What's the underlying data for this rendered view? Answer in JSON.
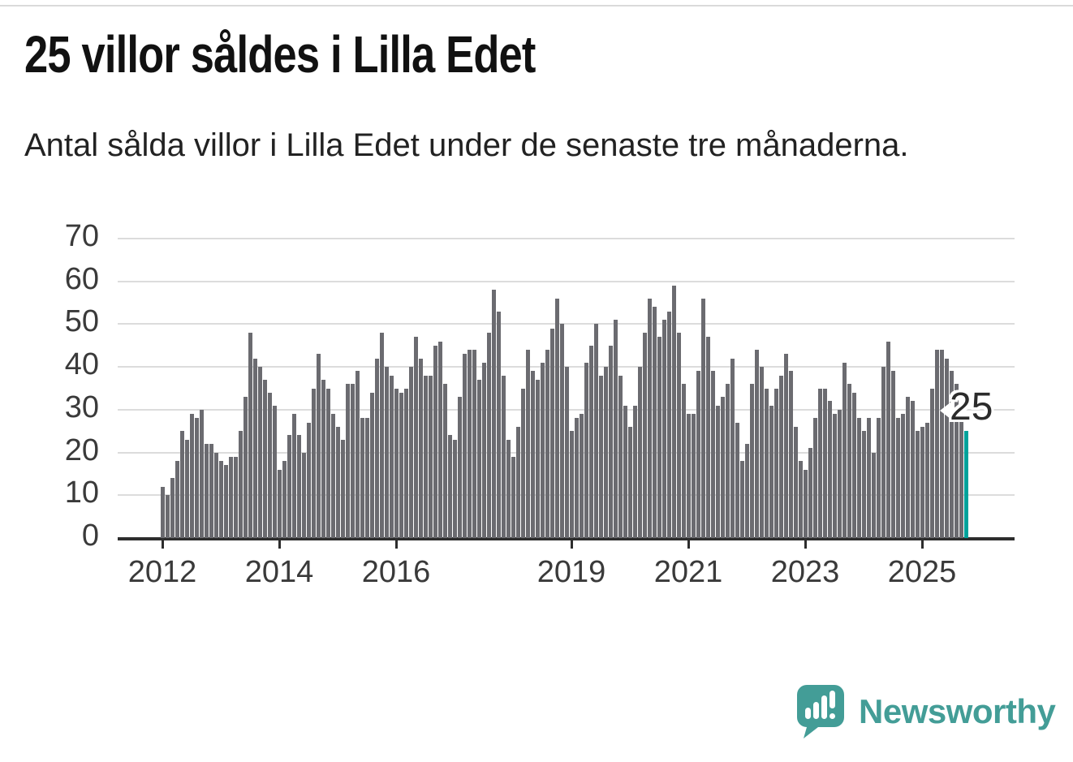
{
  "title": "25 villor såldes i Lilla Edet",
  "subtitle": "Antal sålda villor i Lilla Edet under de senaste tre månaderna.",
  "annotation": {
    "label": "25"
  },
  "branding": {
    "name": "Newsworthy",
    "logo": "newsworthy-speech-bubble-bar-chart-logo"
  },
  "colors": {
    "bar": "#6b6b70",
    "highlight": "#00a29a",
    "axis": "#2d2d2d",
    "grid": "#dcdcdc",
    "title_text": "#111111",
    "tick_text": "#3a3a3a",
    "brand_teal": "#439d97"
  },
  "chart_data": {
    "type": "bar",
    "title": "25 villor såldes i Lilla Edet",
    "subtitle": "Antal sålda villor i Lilla Edet under de senaste tre månaderna.",
    "xlabel": "",
    "ylabel": "",
    "ylim": [
      0,
      70
    ],
    "grid": true,
    "period": "monthly, rolling 3-month totals",
    "start_month": "2012-01",
    "end_month": "2025-10",
    "y_ticks": [
      0,
      10,
      20,
      30,
      40,
      50,
      60,
      70
    ],
    "x_tick_labels": [
      "2012",
      "2014",
      "2016",
      "2019",
      "2021",
      "2023",
      "2025"
    ],
    "x_tick_month_index": [
      0,
      24,
      48,
      84,
      108,
      132,
      156
    ],
    "highlight_last_value": 25,
    "values": [
      12,
      10,
      14,
      18,
      25,
      23,
      29,
      28,
      30,
      22,
      22,
      20,
      18,
      17,
      19,
      19,
      25,
      33,
      48,
      42,
      40,
      37,
      34,
      31,
      16,
      18,
      24,
      29,
      24,
      20,
      27,
      35,
      43,
      37,
      35,
      29,
      26,
      23,
      36,
      36,
      39,
      28,
      28,
      34,
      42,
      48,
      40,
      38,
      35,
      34,
      35,
      40,
      47,
      42,
      38,
      38,
      45,
      46,
      36,
      24,
      23,
      33,
      43,
      44,
      44,
      37,
      41,
      48,
      58,
      53,
      38,
      23,
      19,
      26,
      35,
      44,
      39,
      37,
      41,
      44,
      49,
      56,
      50,
      40,
      25,
      28,
      29,
      41,
      45,
      50,
      38,
      40,
      45,
      51,
      38,
      31,
      26,
      31,
      40,
      48,
      56,
      54,
      47,
      51,
      53,
      59,
      48,
      36,
      29,
      29,
      39,
      56,
      47,
      39,
      31,
      33,
      36,
      42,
      27,
      18,
      22,
      36,
      44,
      40,
      35,
      31,
      35,
      38,
      43,
      39,
      26,
      18,
      16,
      21,
      28,
      35,
      35,
      32,
      29,
      30,
      41,
      36,
      34,
      28,
      25,
      28,
      20,
      28,
      40,
      46,
      39,
      28,
      29,
      33,
      32,
      25,
      26,
      27,
      35,
      44,
      44,
      42,
      39,
      36,
      28,
      25
    ]
  }
}
